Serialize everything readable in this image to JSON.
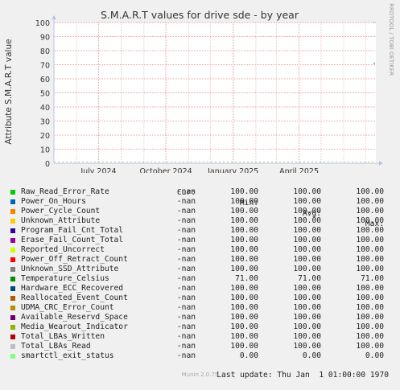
{
  "chart_data": {
    "type": "line",
    "title": "S.M.A.R.T values for drive sde - by year",
    "ylabel": "Attribute S.M.A.R.T value",
    "side_label": "RRDTOOL / TOBI OETIKER",
    "ylim": [
      0,
      100
    ],
    "yticks": [
      0,
      10,
      20,
      30,
      40,
      50,
      60,
      70,
      80,
      90,
      100
    ],
    "xlim": [
      "2024-05-01",
      "2025-07-15"
    ],
    "xticks": [
      {
        "label": "July 2024",
        "date": "2024-07-01"
      },
      {
        "label": "October 2024",
        "date": "2024-10-01"
      },
      {
        "label": "January 2025",
        "date": "2025-01-01"
      },
      {
        "label": "April 2025",
        "date": "2025-04-01"
      }
    ],
    "grid": true,
    "columns": [
      "Cur:",
      "Min:",
      "Avg:",
      "Max:"
    ],
    "series": [
      {
        "name": "Raw_Read_Error_Rate",
        "color": "#00cc00",
        "cur": "-nan",
        "min": "100.00",
        "avg": "100.00",
        "max": "100.00"
      },
      {
        "name": "Power_On_Hours",
        "color": "#0066b3",
        "cur": "-nan",
        "min": "100.00",
        "avg": "100.00",
        "max": "100.00"
      },
      {
        "name": "Power_Cycle_Count",
        "color": "#ff8000",
        "cur": "-nan",
        "min": "100.00",
        "avg": "100.00",
        "max": "100.00"
      },
      {
        "name": "Unknown_Attribute",
        "color": "#ffcc00",
        "cur": "-nan",
        "min": "100.00",
        "avg": "100.00",
        "max": "100.00"
      },
      {
        "name": "Program_Fail_Cnt_Total",
        "color": "#330099",
        "cur": "-nan",
        "min": "100.00",
        "avg": "100.00",
        "max": "100.00"
      },
      {
        "name": "Erase_Fail_Count_Total",
        "color": "#990099",
        "cur": "-nan",
        "min": "100.00",
        "avg": "100.00",
        "max": "100.00"
      },
      {
        "name": "Reported_Uncorrect",
        "color": "#ccff00",
        "cur": "-nan",
        "min": "100.00",
        "avg": "100.00",
        "max": "100.00"
      },
      {
        "name": "Power_Off_Retract_Count",
        "color": "#ff0000",
        "cur": "-nan",
        "min": "100.00",
        "avg": "100.00",
        "max": "100.00"
      },
      {
        "name": "Unknown_SSD_Attribute",
        "color": "#808080",
        "cur": "-nan",
        "min": "100.00",
        "avg": "100.00",
        "max": "100.00"
      },
      {
        "name": "Temperature_Celsius",
        "color": "#008f00",
        "cur": "-nan",
        "min": "71.00",
        "avg": "71.00",
        "max": "71.00"
      },
      {
        "name": "Hardware_ECC_Recovered",
        "color": "#00487d",
        "cur": "-nan",
        "min": "100.00",
        "avg": "100.00",
        "max": "100.00"
      },
      {
        "name": "Reallocated_Event_Count",
        "color": "#b35a00",
        "cur": "-nan",
        "min": "100.00",
        "avg": "100.00",
        "max": "100.00"
      },
      {
        "name": "UDMA_CRC_Error_Count",
        "color": "#b38f00",
        "cur": "-nan",
        "min": "100.00",
        "avg": "100.00",
        "max": "100.00"
      },
      {
        "name": "Available_Reservd_Space",
        "color": "#6b006b",
        "cur": "-nan",
        "min": "100.00",
        "avg": "100.00",
        "max": "100.00"
      },
      {
        "name": "Media_Wearout_Indicator",
        "color": "#8fb300",
        "cur": "-nan",
        "min": "100.00",
        "avg": "100.00",
        "max": "100.00"
      },
      {
        "name": "Total_LBAs_Written",
        "color": "#b30000",
        "cur": "-nan",
        "min": "100.00",
        "avg": "100.00",
        "max": "100.00"
      },
      {
        "name": "Total_LBAs_Read",
        "color": "#bebebe",
        "cur": "-nan",
        "min": "100.00",
        "avg": "100.00",
        "max": "100.00"
      },
      {
        "name": "smartctl_exit_status",
        "color": "#80ff80",
        "cur": "-nan",
        "min": "0.00",
        "avg": "0.00",
        "max": "0.00"
      }
    ],
    "last_update": "Last update: Thu Jan  1 01:00:00 1970",
    "footer": "Munin 2.0.75"
  }
}
